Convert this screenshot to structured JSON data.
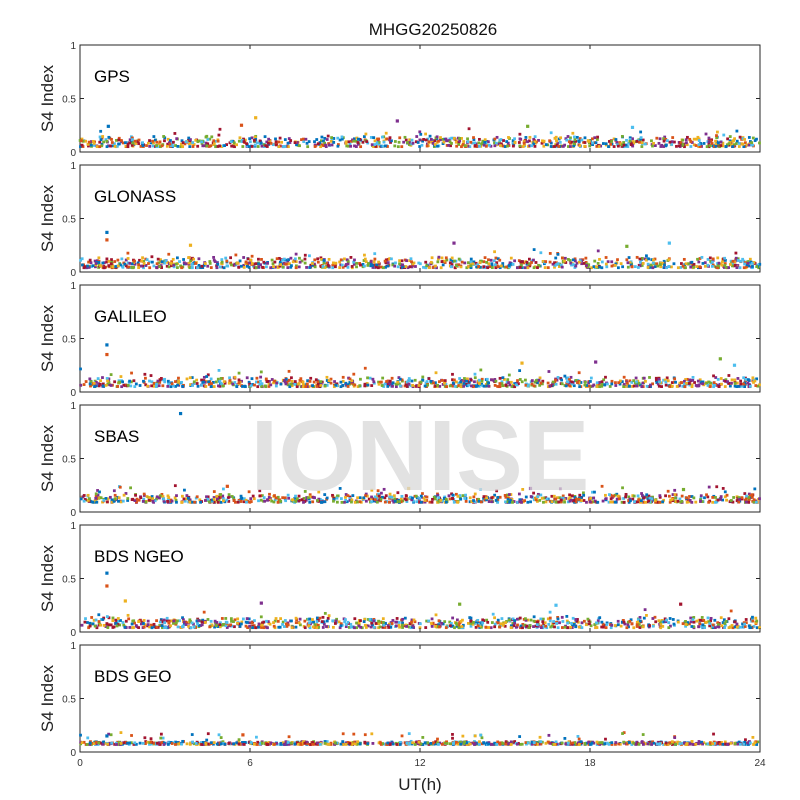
{
  "chart_data": {
    "type": "scatter",
    "title": "MHGG20250826",
    "watermark": "IONISE",
    "xlabel": "UT(h)",
    "ylabel": "S4 Index",
    "xlim": [
      0,
      24
    ],
    "ylim": [
      0,
      1
    ],
    "xticks": [
      0,
      6,
      12,
      18,
      24
    ],
    "yticks": [
      0,
      0.5,
      1
    ],
    "yticklabels": [
      "0",
      "0.5",
      "1"
    ],
    "series_colors": [
      "#0072BD",
      "#D95319",
      "#EDB120",
      "#7E2F8E",
      "#77AC30",
      "#4DBEEE",
      "#A2142F"
    ],
    "panels": [
      {
        "label": "GPS",
        "typical_range": [
          0.05,
          0.15
        ],
        "notable_points": [
          {
            "x": 1.0,
            "y": 0.24
          },
          {
            "x": 5.7,
            "y": 0.25
          },
          {
            "x": 6.2,
            "y": 0.32
          },
          {
            "x": 11.2,
            "y": 0.29
          },
          {
            "x": 15.8,
            "y": 0.24
          },
          {
            "x": 19.5,
            "y": 0.23
          }
        ]
      },
      {
        "label": "GLONASS",
        "typical_range": [
          0.04,
          0.14
        ],
        "notable_points": [
          {
            "x": 0.95,
            "y": 0.37
          },
          {
            "x": 0.95,
            "y": 0.3
          },
          {
            "x": 3.9,
            "y": 0.25
          },
          {
            "x": 13.2,
            "y": 0.27
          },
          {
            "x": 19.3,
            "y": 0.24
          },
          {
            "x": 20.8,
            "y": 0.27
          }
        ]
      },
      {
        "label": "GALILEO",
        "typical_range": [
          0.05,
          0.14
        ],
        "notable_points": [
          {
            "x": 0.95,
            "y": 0.44
          },
          {
            "x": 0.95,
            "y": 0.35
          },
          {
            "x": 15.6,
            "y": 0.27
          },
          {
            "x": 18.2,
            "y": 0.28
          },
          {
            "x": 22.6,
            "y": 0.31
          },
          {
            "x": 23.1,
            "y": 0.25
          }
        ]
      },
      {
        "label": "SBAS",
        "typical_range": [
          0.09,
          0.17
        ],
        "notable_points": [
          {
            "x": 3.55,
            "y": 0.92
          },
          {
            "x": 5.2,
            "y": 0.24
          },
          {
            "x": 11.6,
            "y": 0.22
          },
          {
            "x": 15.9,
            "y": 0.22
          },
          {
            "x": 21.3,
            "y": 0.21
          }
        ]
      },
      {
        "label": "BDS NGEO",
        "typical_range": [
          0.04,
          0.14
        ],
        "notable_points": [
          {
            "x": 0.95,
            "y": 0.55
          },
          {
            "x": 0.95,
            "y": 0.43
          },
          {
            "x": 1.6,
            "y": 0.29
          },
          {
            "x": 6.4,
            "y": 0.27
          },
          {
            "x": 13.4,
            "y": 0.26
          },
          {
            "x": 16.8,
            "y": 0.25
          },
          {
            "x": 21.2,
            "y": 0.26
          }
        ]
      },
      {
        "label": "BDS GEO",
        "typical_range": [
          0.07,
          0.1
        ],
        "notable_points": [
          {
            "x": 0.95,
            "y": 0.15
          },
          {
            "x": 5.75,
            "y": 0.16
          }
        ]
      }
    ]
  }
}
